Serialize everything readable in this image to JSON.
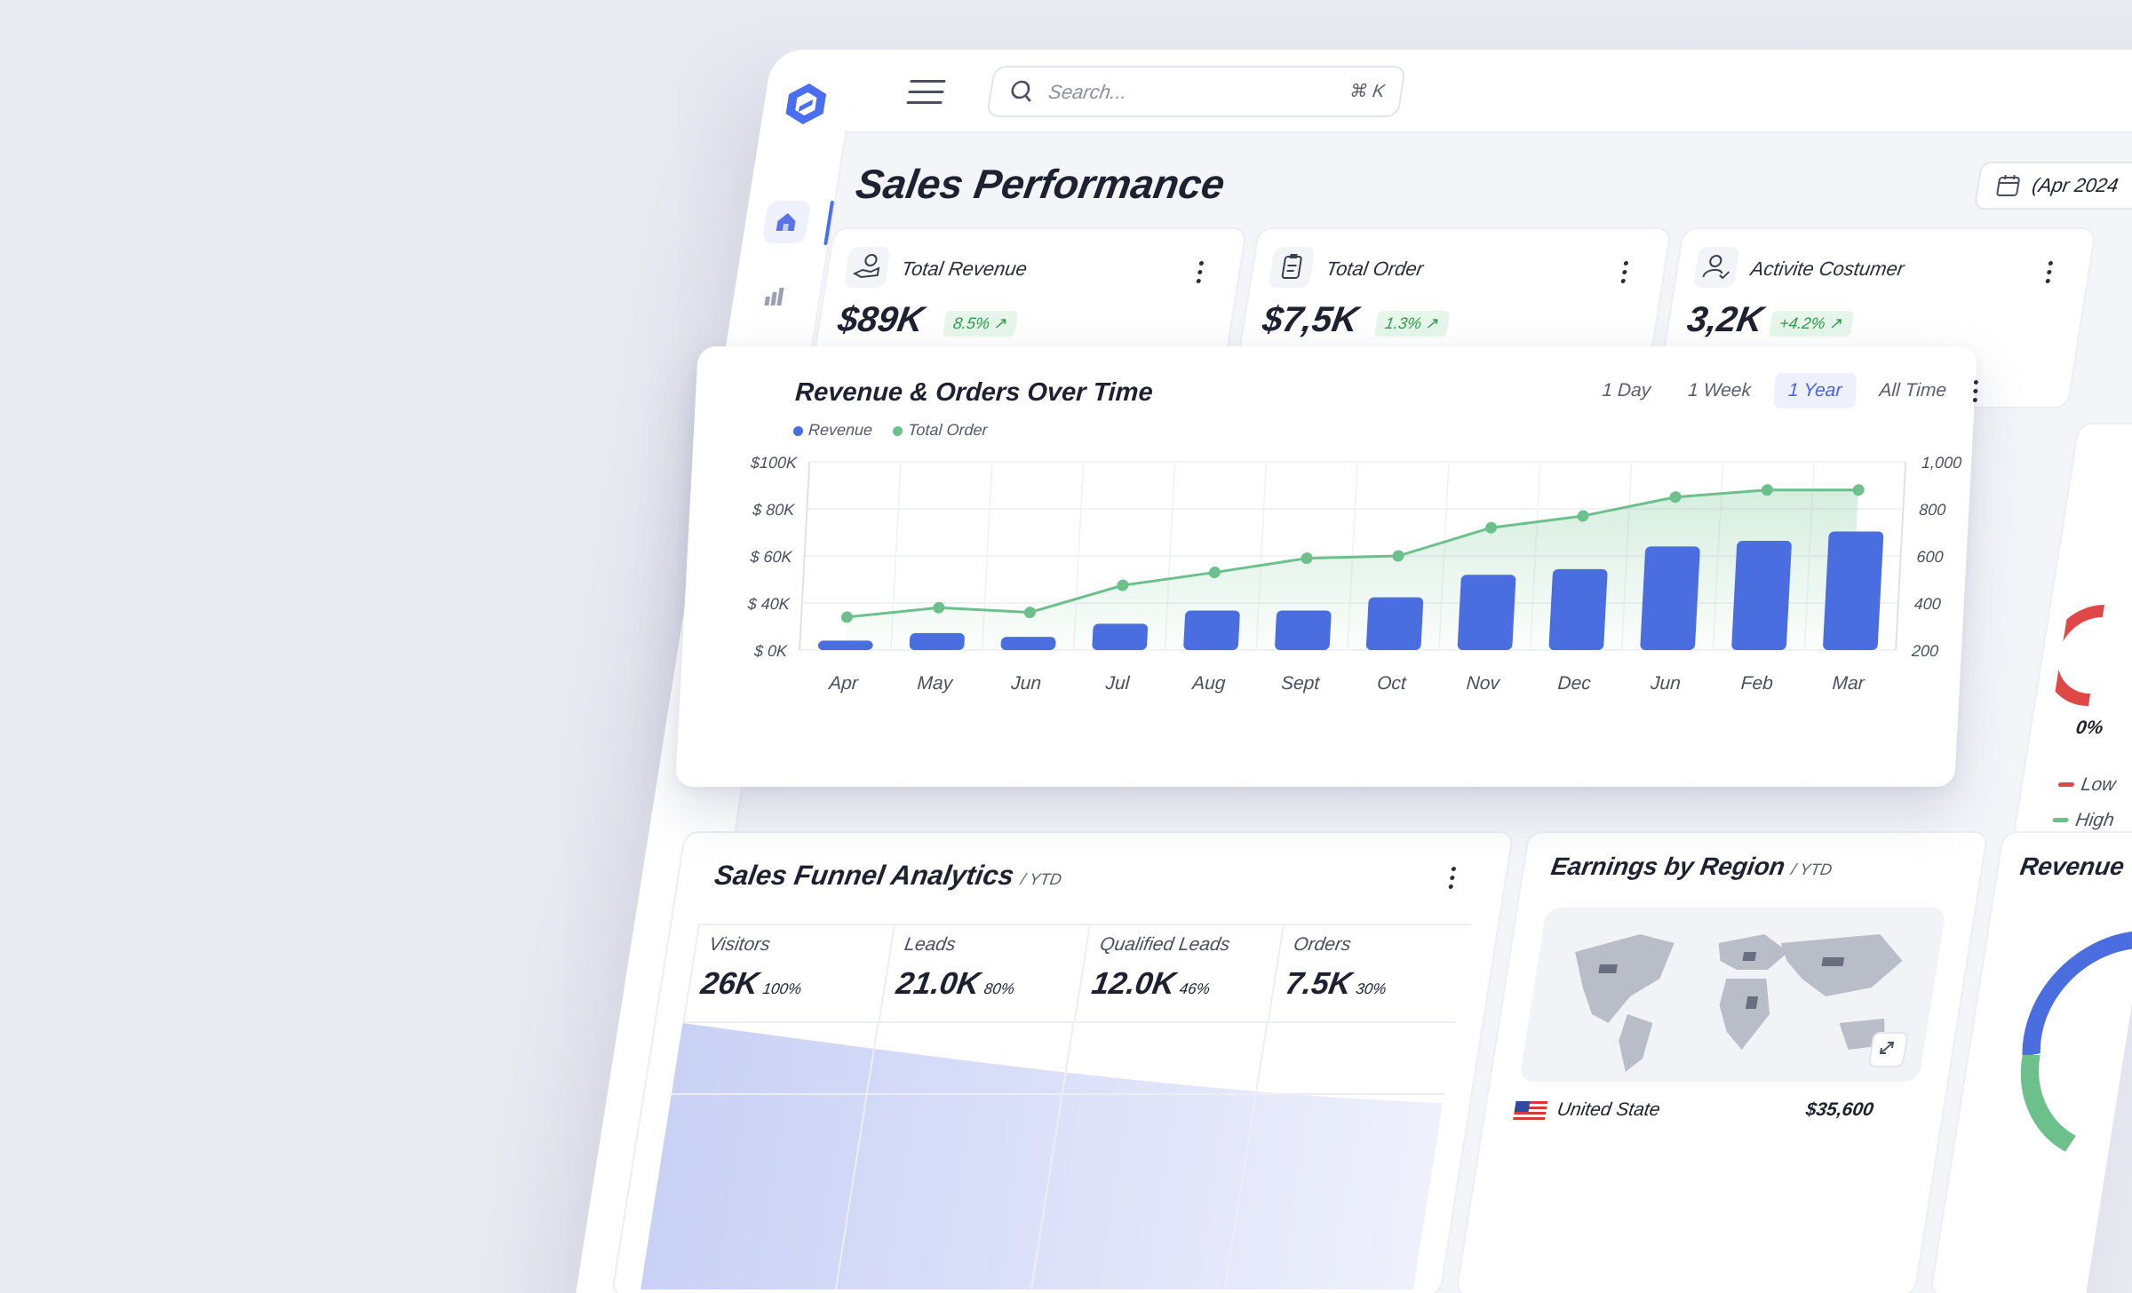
{
  "app": {
    "brand_color": "#4a6ef0"
  },
  "topbar": {
    "search_placeholder": "Search...",
    "search_shortcut": "⌘ K"
  },
  "page": {
    "title": "Sales Performance",
    "date_range": "(Apr 2024"
  },
  "sidebar": {
    "items": [
      {
        "icon": "home-icon",
        "active": true
      },
      {
        "icon": "bar-chart-icon"
      },
      {
        "icon": "user-icon"
      },
      {
        "icon": "gear-icon"
      },
      {
        "icon": "cart-icon"
      },
      {
        "icon": "dollar-icon"
      },
      {
        "icon": "document-icon"
      }
    ]
  },
  "kpis": [
    {
      "title": "Total Revenue",
      "value": "$89K",
      "change": "8.5% ↗",
      "icon": "hand-money-icon"
    },
    {
      "title": "Total Order",
      "value": "$7,5K",
      "change": "1.3% ↗",
      "icon": "clipboard-icon"
    },
    {
      "title": "Activite Costumer",
      "value": "3,2K",
      "change": "+4.2% ↗",
      "icon": "user-check-icon"
    }
  ],
  "revenue_chart": {
    "title": "Revenue & Orders Over Time",
    "legend": {
      "revenue": "Revenue",
      "orders": "Total Order"
    },
    "ranges": [
      "1 Day",
      "1 Week",
      "1 Year",
      "All Time"
    ],
    "active_range": "1 Year",
    "colors": {
      "revenue": "#4a6ee0",
      "orders": "#6cc08b"
    }
  },
  "chart_data": {
    "type": "bar",
    "categories": [
      "Apr",
      "May",
      "Jun",
      "Jul",
      "Aug",
      "Sept",
      "Oct",
      "Nov",
      "Dec",
      "Jun",
      "Feb",
      "Mar"
    ],
    "series": [
      {
        "name": "Revenue",
        "type": "bar",
        "axis": "left",
        "values": [
          5000,
          9000,
          7000,
          14000,
          21000,
          21000,
          28000,
          40000,
          43000,
          55000,
          58000,
          63000
        ]
      },
      {
        "name": "Total Order",
        "type": "line",
        "axis": "right",
        "values": [
          340,
          380,
          360,
          475,
          530,
          590,
          600,
          720,
          770,
          850,
          880,
          880
        ]
      }
    ],
    "y_left": {
      "ticks": [
        "$100K",
        "$ 80K",
        "$ 60K",
        "$ 40K",
        "$ 0K"
      ],
      "ylim": [
        0,
        100000
      ]
    },
    "y_right": {
      "ticks": [
        "1,000",
        "800",
        "600",
        "400",
        "200"
      ],
      "ylim": [
        200,
        1000
      ]
    },
    "grid": true
  },
  "funnel": {
    "title": "Sales Funnel Analytics",
    "period": "/ YTD",
    "stages": [
      {
        "name": "Visitors",
        "value": "26K",
        "pct": "100%"
      },
      {
        "name": "Leads",
        "value": "21.0K",
        "pct": "80%"
      },
      {
        "name": "Qualified Leads",
        "value": "12.0K",
        "pct": "46%"
      },
      {
        "name": "Orders",
        "value": "7.5K",
        "pct": "30%"
      }
    ]
  },
  "region": {
    "title": "Earnings by Region",
    "period": "/ YTD",
    "rows": [
      {
        "country": "United State",
        "amount": "$35,600"
      }
    ]
  },
  "right_panel": {
    "gauge_pct": "0%",
    "legend": [
      {
        "label": "Low",
        "color": "#e04848"
      },
      {
        "label": "High",
        "color": "#6cc08b"
      }
    ],
    "revenue_title": "Revenue"
  }
}
